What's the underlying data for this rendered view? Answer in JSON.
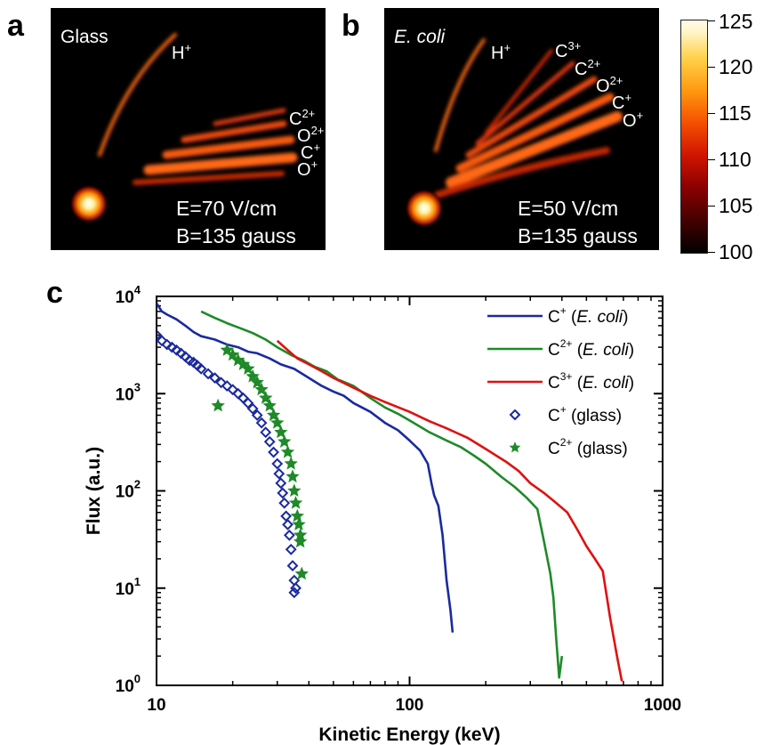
{
  "panel_a": {
    "letter": "a",
    "sample": "Glass",
    "field_e": "E=70 V/cm",
    "field_b": "B=135 gauss",
    "ions": [
      {
        "base": "H",
        "charge": "+"
      },
      {
        "base": "C",
        "charge": "2+"
      },
      {
        "base": "O",
        "charge": "2+"
      },
      {
        "base": "C",
        "charge": "+"
      },
      {
        "base": "O",
        "charge": "+"
      }
    ]
  },
  "panel_b": {
    "letter": "b",
    "sample": "E. coli",
    "field_e": "E=50 V/cm",
    "field_b": "B=135 gauss",
    "ions": [
      {
        "base": "H",
        "charge": "+"
      },
      {
        "base": "C",
        "charge": "3+"
      },
      {
        "base": "C",
        "charge": "2+"
      },
      {
        "base": "O",
        "charge": "2+"
      },
      {
        "base": "C",
        "charge": "+"
      },
      {
        "base": "O",
        "charge": "+"
      }
    ]
  },
  "colorbar": {
    "ticks": [
      "125",
      "120",
      "115",
      "110",
      "105",
      "100"
    ],
    "colors": [
      "#000000",
      "#8a0000",
      "#f55000",
      "#ff9a10",
      "#ffd24a",
      "#fffbe8"
    ]
  },
  "panel_c": {
    "letter": "c"
  },
  "chart_data": {
    "type": "line",
    "xlabel": "Kinetic Energy (keV)",
    "ylabel": "Flux (a.u.)",
    "xscale": "log",
    "yscale": "log",
    "xlim": [
      10,
      1000
    ],
    "ylim": [
      1,
      10000
    ],
    "x_ticks": [
      {
        "value": 10,
        "label": "10"
      },
      {
        "value": 100,
        "label": "100"
      },
      {
        "value": 1000,
        "label": "1000"
      }
    ],
    "y_ticks": [
      {
        "value": 1,
        "base": "10",
        "exp": "0"
      },
      {
        "value": 10,
        "base": "10",
        "exp": "1"
      },
      {
        "value": 100,
        "base": "10",
        "exp": "2"
      },
      {
        "value": 1000,
        "base": "10",
        "exp": "3"
      },
      {
        "value": 10000,
        "base": "10",
        "exp": "4"
      }
    ],
    "grid": false,
    "legend_position": "top-right",
    "series": [
      {
        "name": "C+ (E. coli)",
        "label_base": "C",
        "label_charge": "+",
        "label_sample": "E. coli",
        "style": "line",
        "color": "#1a2a9e",
        "points": [
          [
            10,
            8500
          ],
          [
            10.5,
            7000
          ],
          [
            11,
            6500
          ],
          [
            12,
            5800
          ],
          [
            13,
            5000
          ],
          [
            14,
            4300
          ],
          [
            15,
            3900
          ],
          [
            17,
            3600
          ],
          [
            19,
            3200
          ],
          [
            21,
            3000
          ],
          [
            23,
            2700
          ],
          [
            25,
            2600
          ],
          [
            28,
            2300
          ],
          [
            31,
            2000
          ],
          [
            35,
            1800
          ],
          [
            40,
            1450
          ],
          [
            45,
            1200
          ],
          [
            50,
            1050
          ],
          [
            55,
            950
          ],
          [
            60,
            800
          ],
          [
            70,
            650
          ],
          [
            80,
            500
          ],
          [
            90,
            420
          ],
          [
            100,
            330
          ],
          [
            110,
            260
          ],
          [
            118,
            190
          ],
          [
            122,
            120
          ],
          [
            125,
            90
          ],
          [
            130,
            70
          ],
          [
            135,
            35
          ],
          [
            140,
            12
          ],
          [
            145,
            6
          ],
          [
            148,
            3.5
          ]
        ]
      },
      {
        "name": "C2+ (E. coli)",
        "label_base": "C",
        "label_charge": "2+",
        "label_sample": "E. coli",
        "style": "line",
        "color": "#1e8a28",
        "points": [
          [
            15,
            7000
          ],
          [
            17,
            6000
          ],
          [
            19,
            5300
          ],
          [
            21,
            4800
          ],
          [
            24,
            4200
          ],
          [
            27,
            3600
          ],
          [
            30,
            3000
          ],
          [
            34,
            2500
          ],
          [
            38,
            2200
          ],
          [
            42,
            1900
          ],
          [
            47,
            1700
          ],
          [
            52,
            1400
          ],
          [
            60,
            1200
          ],
          [
            70,
            900
          ],
          [
            80,
            720
          ],
          [
            90,
            620
          ],
          [
            100,
            530
          ],
          [
            120,
            400
          ],
          [
            140,
            330
          ],
          [
            160,
            280
          ],
          [
            180,
            230
          ],
          [
            200,
            190
          ],
          [
            230,
            140
          ],
          [
            260,
            110
          ],
          [
            290,
            85
          ],
          [
            320,
            65
          ],
          [
            340,
            30
          ],
          [
            360,
            14
          ],
          [
            370,
            8
          ],
          [
            380,
            3
          ],
          [
            390,
            1.2
          ],
          [
            400,
            2
          ]
        ]
      },
      {
        "name": "C3+ (E. coli)",
        "label_base": "C",
        "label_charge": "3+",
        "label_sample": "E. coli",
        "style": "line",
        "color": "#e01010",
        "points": [
          [
            30,
            3500
          ],
          [
            33,
            2800
          ],
          [
            36,
            2300
          ],
          [
            40,
            2000
          ],
          [
            45,
            1700
          ],
          [
            50,
            1450
          ],
          [
            60,
            1150
          ],
          [
            70,
            950
          ],
          [
            80,
            820
          ],
          [
            100,
            650
          ],
          [
            120,
            520
          ],
          [
            140,
            440
          ],
          [
            170,
            350
          ],
          [
            200,
            270
          ],
          [
            240,
            200
          ],
          [
            270,
            160
          ],
          [
            300,
            120
          ],
          [
            340,
            95
          ],
          [
            380,
            75
          ],
          [
            420,
            60
          ],
          [
            460,
            40
          ],
          [
            500,
            27
          ],
          [
            540,
            20
          ],
          [
            580,
            15
          ],
          [
            620,
            5
          ],
          [
            660,
            2
          ],
          [
            690,
            1.1
          ]
        ]
      },
      {
        "name": "C+ (glass)",
        "label_base": "C",
        "label_charge": "+",
        "label_sample": "glass",
        "style": "diamond",
        "color": "#1a2a9e",
        "points": [
          [
            10,
            4000
          ],
          [
            10.5,
            3500
          ],
          [
            11,
            3200
          ],
          [
            11.5,
            3000
          ],
          [
            12,
            2800
          ],
          [
            12.5,
            2600
          ],
          [
            13,
            2400
          ],
          [
            13.5,
            2200
          ],
          [
            14,
            2100
          ],
          [
            14.5,
            1950
          ],
          [
            15,
            1800
          ],
          [
            16,
            1600
          ],
          [
            17,
            1450
          ],
          [
            18,
            1300
          ],
          [
            19,
            1200
          ],
          [
            20,
            1100
          ],
          [
            21,
            1000
          ],
          [
            22,
            900
          ],
          [
            23,
            800
          ],
          [
            24,
            700
          ],
          [
            25,
            600
          ],
          [
            26,
            500
          ],
          [
            27,
            400
          ],
          [
            28,
            320
          ],
          [
            29,
            250
          ],
          [
            30,
            190
          ],
          [
            30.5,
            150
          ],
          [
            31,
            120
          ],
          [
            31.5,
            95
          ],
          [
            32,
            75
          ],
          [
            32.5,
            55
          ],
          [
            33,
            45
          ],
          [
            33.5,
            35
          ],
          [
            34,
            25
          ],
          [
            34.5,
            17
          ],
          [
            35,
            12
          ],
          [
            35.5,
            10
          ],
          [
            35,
            9
          ]
        ]
      },
      {
        "name": "C2+ (glass)",
        "label_base": "C",
        "label_charge": "2+",
        "label_sample": "glass",
        "style": "star",
        "color": "#1e8a28",
        "points": [
          [
            17.5,
            750
          ],
          [
            19,
            2800
          ],
          [
            20,
            2500
          ],
          [
            21,
            2200
          ],
          [
            22,
            2000
          ],
          [
            23,
            1800
          ],
          [
            24,
            1500
          ],
          [
            25,
            1300
          ],
          [
            26,
            1100
          ],
          [
            27,
            900
          ],
          [
            28,
            750
          ],
          [
            29,
            600
          ],
          [
            30,
            500
          ],
          [
            31,
            400
          ],
          [
            32,
            320
          ],
          [
            33,
            250
          ],
          [
            34,
            190
          ],
          [
            34.5,
            140
          ],
          [
            35,
            100
          ],
          [
            35.5,
            75
          ],
          [
            36,
            55
          ],
          [
            36.5,
            45
          ],
          [
            37,
            35
          ],
          [
            37,
            30
          ],
          [
            37.5,
            14
          ]
        ]
      }
    ]
  }
}
